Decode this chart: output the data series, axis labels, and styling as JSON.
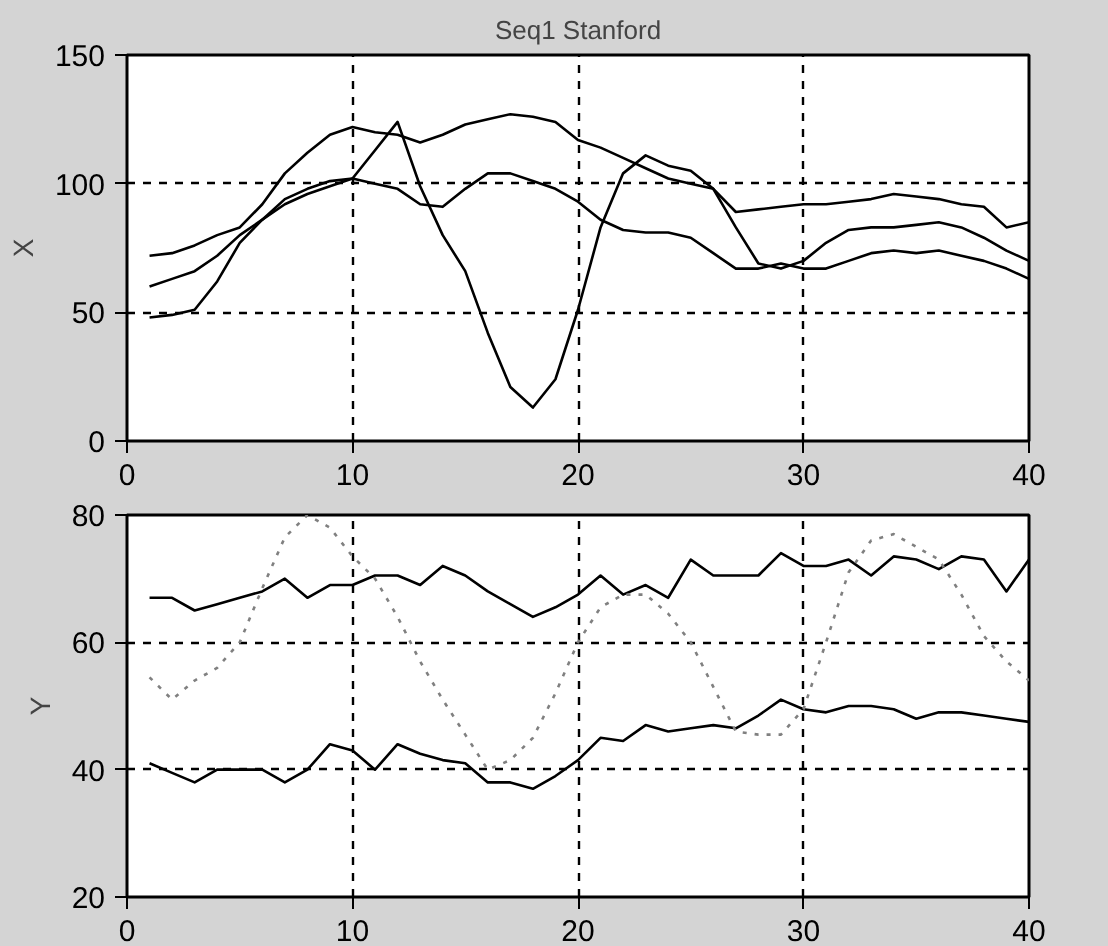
{
  "chart_data": [
    {
      "type": "line",
      "title": "Seq1 Stanford",
      "ylabel": "X",
      "x": [
        1,
        2,
        3,
        4,
        5,
        6,
        7,
        8,
        9,
        10,
        11,
        12,
        13,
        14,
        15,
        16,
        17,
        18,
        19,
        20,
        21,
        22,
        23,
        24,
        25,
        26,
        27,
        28,
        29,
        30,
        31,
        32,
        33,
        34,
        35,
        36,
        37,
        38,
        39,
        40
      ],
      "xlim": [
        0,
        40
      ],
      "xticks": [
        0,
        10,
        20,
        30,
        40
      ],
      "ylim": [
        0,
        150
      ],
      "yticks": [
        0,
        50,
        100,
        150
      ],
      "grid": true,
      "line_style": "solid",
      "series": [
        {
          "color": "#000000",
          "values": [
            72,
            73,
            76,
            80,
            83,
            92,
            104,
            112,
            119,
            122,
            120,
            119,
            116,
            119,
            123,
            125,
            127,
            126,
            124,
            117,
            114,
            110,
            106,
            102,
            100,
            98,
            89,
            90,
            91,
            92,
            92,
            93,
            94,
            96,
            95,
            94,
            92,
            91,
            83,
            85
          ]
        },
        {
          "color": "#000000",
          "values": [
            60,
            63,
            66,
            72,
            80,
            86,
            92,
            96,
            99,
            102,
            100,
            98,
            92,
            91,
            98,
            104,
            104,
            101,
            98,
            93,
            86,
            82,
            81,
            81,
            79,
            73,
            67,
            67,
            69,
            67,
            67,
            70,
            73,
            74,
            73,
            74,
            72,
            70,
            67,
            63
          ]
        },
        {
          "color": "#000000",
          "values": [
            48,
            49,
            51,
            62,
            77,
            86,
            94,
            98,
            101,
            102,
            113,
            124,
            99,
            80,
            66,
            42,
            21,
            13,
            24,
            51,
            83,
            104,
            111,
            107,
            105,
            98,
            83,
            69,
            67,
            70,
            77,
            82,
            83,
            83,
            84,
            85,
            83,
            79,
            74,
            70
          ]
        }
      ]
    },
    {
      "type": "line",
      "ylabel": "Y",
      "x": [
        1,
        2,
        3,
        4,
        5,
        6,
        7,
        8,
        9,
        10,
        11,
        12,
        13,
        14,
        15,
        16,
        17,
        18,
        19,
        20,
        21,
        22,
        23,
        24,
        25,
        26,
        27,
        28,
        29,
        30,
        31,
        32,
        33,
        34,
        35,
        36,
        37,
        38,
        39,
        40
      ],
      "xlim": [
        0,
        40
      ],
      "xticks": [
        0,
        10,
        20,
        30,
        40
      ],
      "ylim": [
        20,
        80
      ],
      "yticks": [
        20,
        40,
        60,
        80
      ],
      "grid": true,
      "line_style": "solid",
      "series": [
        {
          "color": "#000000",
          "values": [
            67,
            67,
            65,
            66,
            67,
            68,
            70,
            67,
            69,
            69,
            70.5,
            70.5,
            69,
            72,
            70.5,
            68,
            66,
            64,
            65.5,
            67.5,
            70.5,
            67.5,
            69,
            67,
            73,
            70.5,
            70.5,
            70.5,
            74,
            72,
            72,
            73,
            70.5,
            73.5,
            73,
            71.5,
            73.5,
            73,
            68,
            73
          ]
        },
        {
          "color": "#000000",
          "values": [
            41,
            39.5,
            38,
            40,
            40,
            40,
            38,
            40,
            44,
            43,
            40,
            44,
            42.5,
            41.5,
            41,
            38,
            38,
            37,
            39,
            41.5,
            45,
            44.5,
            47,
            46,
            46.5,
            47,
            46.5,
            48.5,
            51,
            49.5,
            49,
            50,
            50,
            49.5,
            48,
            49,
            49,
            48.5,
            48,
            47.5
          ]
        },
        {
          "color": "#808080",
          "line_style": "dotted",
          "values": [
            54.5,
            51,
            54,
            56,
            60,
            68.5,
            76.5,
            80,
            78,
            73.5,
            70,
            64,
            57,
            51,
            45.5,
            40,
            41.5,
            45,
            52,
            60,
            65.5,
            67.5,
            67.5,
            64.5,
            60,
            53,
            46,
            45.5,
            45.5,
            49.5,
            60,
            71,
            76,
            77,
            75,
            73,
            67.5,
            61,
            57,
            54
          ]
        }
      ]
    }
  ]
}
